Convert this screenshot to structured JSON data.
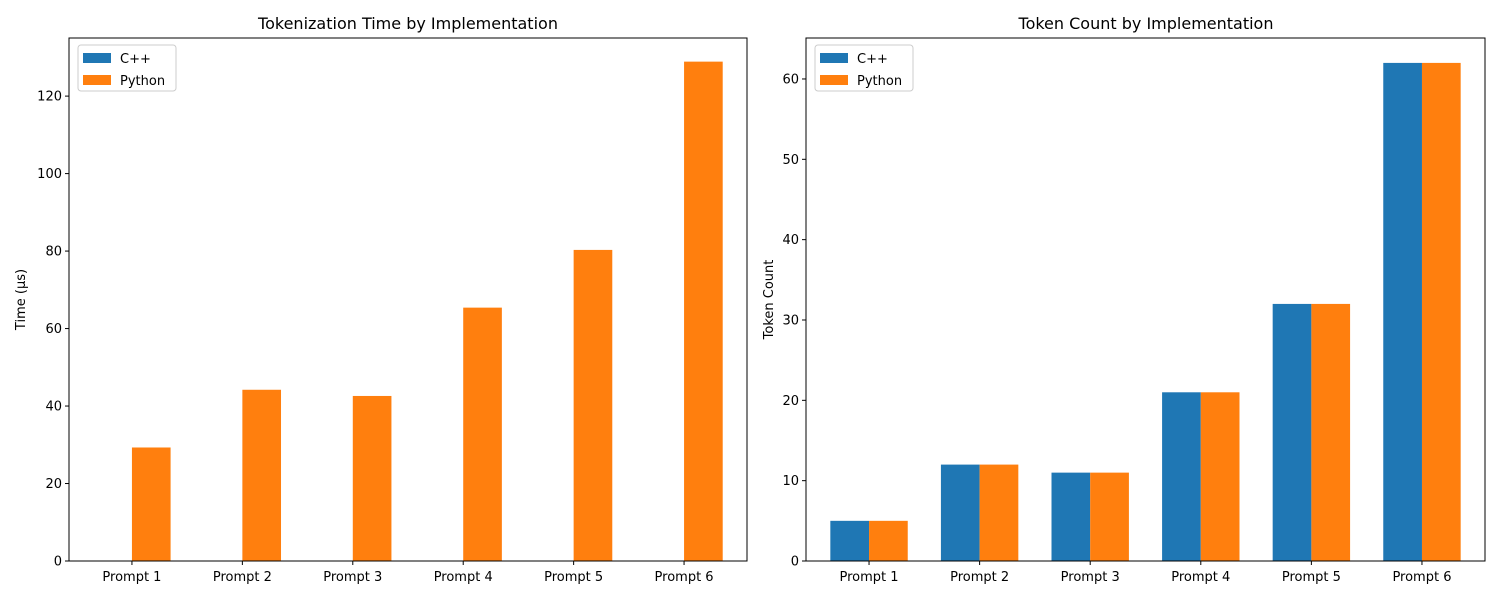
{
  "chart_data": [
    {
      "type": "bar",
      "title": "Tokenization Time by Implementation",
      "xlabel": "",
      "ylabel": "Time (µs)",
      "categories": [
        "Prompt 1",
        "Prompt 2",
        "Prompt 3",
        "Prompt 4",
        "Prompt 5",
        "Prompt 6"
      ],
      "series": [
        {
          "name": "C++",
          "color": "#1f77b4",
          "values": [
            0.05,
            0.05,
            0.05,
            0.05,
            0.05,
            0.05
          ]
        },
        {
          "name": "Python",
          "color": "#ff7f0e",
          "values": [
            29.3,
            44.2,
            42.6,
            65.4,
            80.3,
            128.9
          ]
        }
      ],
      "ylim": [
        0,
        135
      ],
      "yticks": [
        0,
        20,
        40,
        60,
        80,
        100,
        120
      ],
      "grid": false,
      "legend": "top-left"
    },
    {
      "type": "bar",
      "title": "Token Count by Implementation",
      "xlabel": "",
      "ylabel": "Token Count",
      "categories": [
        "Prompt 1",
        "Prompt 2",
        "Prompt 3",
        "Prompt 4",
        "Prompt 5",
        "Prompt 6"
      ],
      "series": [
        {
          "name": "C++",
          "color": "#1f77b4",
          "values": [
            5,
            12,
            11,
            21,
            32,
            62
          ]
        },
        {
          "name": "Python",
          "color": "#ff7f0e",
          "values": [
            5,
            12,
            11,
            21,
            32,
            62
          ]
        }
      ],
      "ylim": [
        0,
        65.1
      ],
      "yticks": [
        0,
        10,
        20,
        30,
        40,
        50,
        60
      ],
      "grid": false,
      "legend": "top-left"
    }
  ]
}
